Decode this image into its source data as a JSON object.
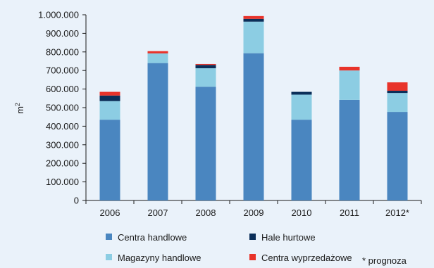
{
  "chart_data": {
    "type": "bar",
    "stacked": true,
    "ylabel": "m",
    "ylabel_superscript": "2",
    "xlabel": "",
    "title": "",
    "ylim": [
      0,
      1000000
    ],
    "ytick_step": 100000,
    "ytick_labels": [
      "0",
      "100.000",
      "200.000",
      "300.000",
      "400.000",
      "500.000",
      "600.000",
      "700.000",
      "800.000",
      "900.000",
      "1.000.000"
    ],
    "categories": [
      "2006",
      "2007",
      "2008",
      "2009",
      "2010",
      "2011",
      "2012*"
    ],
    "series": [
      {
        "name": "Centra handlowe",
        "color": "#4a86c0",
        "values": [
          435000,
          740000,
          612000,
          793000,
          435000,
          542000,
          477000
        ]
      },
      {
        "name": "Magazyny handlowe",
        "color": "#8ccde3",
        "values": [
          100000,
          52000,
          100000,
          170000,
          135000,
          158000,
          102000
        ]
      },
      {
        "name": "Hale hurtowe",
        "color": "#0b2f59",
        "values": [
          30000,
          0,
          18000,
          15000,
          15000,
          0,
          12000
        ]
      },
      {
        "name": "Centra wyprzedażowe",
        "color": "#e8332a",
        "values": [
          20000,
          12000,
          5000,
          15000,
          0,
          20000,
          45000
        ]
      }
    ],
    "legend_placement": "bottom",
    "note": "* prognoza",
    "grid": false
  }
}
